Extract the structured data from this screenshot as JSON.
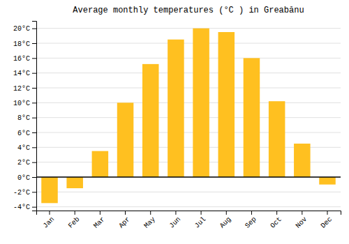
{
  "chart_data": {
    "type": "bar",
    "title": "Average monthly temperatures (°C ) in Greabănu",
    "categories": [
      "Jan",
      "Feb",
      "Mar",
      "Apr",
      "May",
      "Jun",
      "Jul",
      "Aug",
      "Sep",
      "Oct",
      "Nov",
      "Dec"
    ],
    "values": [
      -3.5,
      -1.5,
      3.5,
      10.0,
      15.2,
      18.5,
      20.0,
      19.5,
      16.0,
      10.2,
      4.5,
      -1.0
    ],
    "color": "#FFC020",
    "ylim": [
      -4.5,
      21
    ],
    "yticks": [
      {
        "value": -4,
        "label": "-4°C"
      },
      {
        "value": -2,
        "label": "-2°C"
      },
      {
        "value": 0,
        "label": "0°C"
      },
      {
        "value": 2,
        "label": "2°C"
      },
      {
        "value": 4,
        "label": "4°C"
      },
      {
        "value": 6,
        "label": "6°C"
      },
      {
        "value": 8,
        "label": "8°C"
      },
      {
        "value": 10,
        "label": "10°C"
      },
      {
        "value": 12,
        "label": "12°C"
      },
      {
        "value": 14,
        "label": "14°C"
      },
      {
        "value": 16,
        "label": "16°C"
      },
      {
        "value": 18,
        "label": "18°C"
      },
      {
        "value": 20,
        "label": "20°C"
      }
    ],
    "grid": true
  }
}
